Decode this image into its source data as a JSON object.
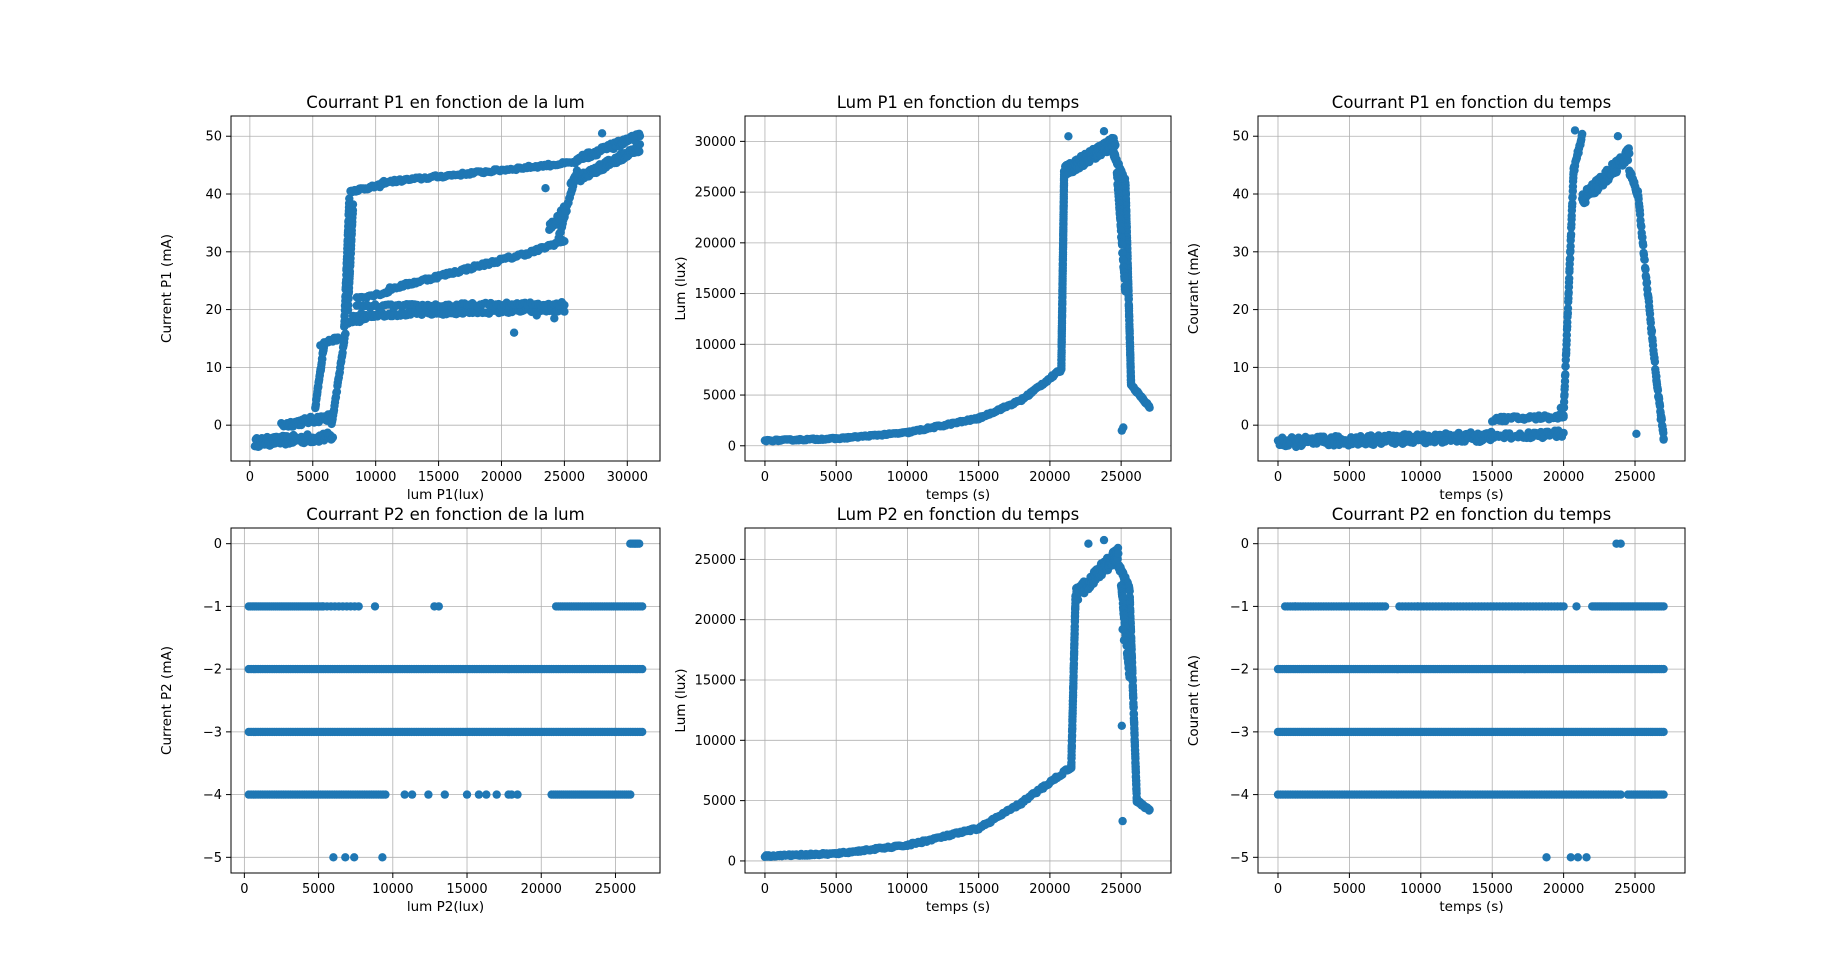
{
  "figure": {
    "background": "#ffffff",
    "point_color": "#1f77b4"
  },
  "chart_data": [
    {
      "id": "ax1",
      "type": "scatter",
      "title": "Courrant P1 en fonction de la lum",
      "xlabel": "lum P1(lux)",
      "ylabel": "Current P1 (mA)",
      "xlim": [
        -1500,
        32600
      ],
      "ylim": [
        -6.2,
        53.5
      ],
      "xticks": [
        0,
        5000,
        10000,
        15000,
        20000,
        25000,
        30000
      ],
      "yticks": [
        0,
        10,
        20,
        30,
        40,
        50
      ],
      "grid": true,
      "segments": [
        {
          "x0": 400,
          "x1": 6600,
          "y0": -3,
          "y1": -2,
          "jit": 1.6,
          "n": 90
        },
        {
          "x0": 2500,
          "x1": 6600,
          "y0": 0,
          "y1": 1.5,
          "jit": 1.2,
          "n": 45
        },
        {
          "x0": 5200,
          "x1": 5900,
          "y0": 3,
          "y1": 14,
          "jit": 0.7,
          "n": 30
        },
        {
          "x0": 5600,
          "x1": 7000,
          "y0": 14,
          "y1": 15,
          "jit": 0.6,
          "n": 15
        },
        {
          "x0": 6500,
          "x1": 7600,
          "y0": 0,
          "y1": 16,
          "jit": 0.6,
          "n": 30
        },
        {
          "x0": 7500,
          "x1": 7900,
          "y0": 17,
          "y1": 39,
          "jit": 0.6,
          "n": 40
        },
        {
          "x0": 7800,
          "x1": 8200,
          "y0": 20,
          "y1": 38,
          "jit": 0.6,
          "n": 35
        },
        {
          "x0": 8000,
          "x1": 10500,
          "y0": 40.5,
          "y1": 41.5,
          "jit": 0.5,
          "n": 30
        },
        {
          "x0": 10500,
          "x1": 26000,
          "y0": 42,
          "y1": 45.5,
          "jit": 0.5,
          "n": 110
        },
        {
          "x0": 7800,
          "x1": 10000,
          "y0": 17.5,
          "y1": 19,
          "jit": 0.6,
          "n": 20
        },
        {
          "x0": 8200,
          "x1": 25000,
          "y0": 19,
          "y1": 20,
          "jit": 0.7,
          "n": 130
        },
        {
          "x0": 8500,
          "x1": 25000,
          "y0": 20.5,
          "y1": 21,
          "jit": 0.7,
          "n": 80
        },
        {
          "x0": 8500,
          "x1": 11000,
          "y0": 22,
          "y1": 23,
          "jit": 0.5,
          "n": 20
        },
        {
          "x0": 11000,
          "x1": 22500,
          "y0": 23.5,
          "y1": 30,
          "jit": 0.6,
          "n": 90
        },
        {
          "x0": 22500,
          "x1": 25000,
          "y0": 30,
          "y1": 32,
          "jit": 0.6,
          "n": 25
        },
        {
          "x0": 24500,
          "x1": 26000,
          "y0": 32,
          "y1": 44,
          "jit": 0.7,
          "n": 30
        },
        {
          "x0": 23800,
          "x1": 25200,
          "y0": 34,
          "y1": 38,
          "jit": 1.3,
          "n": 25
        },
        {
          "x0": 25500,
          "x1": 31000,
          "y0": 42,
          "y1": 48,
          "jit": 1.3,
          "n": 120
        },
        {
          "x0": 26000,
          "x1": 31000,
          "y0": 46,
          "y1": 50,
          "jit": 1.1,
          "n": 90
        }
      ],
      "points": [
        [
          23500,
          41
        ],
        [
          22800,
          19
        ],
        [
          24200,
          18.5
        ],
        [
          21000,
          16
        ],
        [
          26000,
          46
        ],
        [
          28000,
          50.5
        ],
        [
          30500,
          50
        ]
      ]
    },
    {
      "id": "ax2",
      "type": "scatter",
      "title": "Lum P1 en fonction du temps",
      "xlabel": "temps (s)",
      "ylabel": "Lum (lux)",
      "xlim": [
        -1400,
        28500
      ],
      "ylim": [
        -1500,
        32500
      ],
      "xticks": [
        0,
        5000,
        10000,
        15000,
        20000,
        25000
      ],
      "yticks": [
        0,
        5000,
        10000,
        15000,
        20000,
        25000,
        30000
      ],
      "grid": true,
      "segments": [
        {
          "x0": 0,
          "x1": 5000,
          "y0": 500,
          "y1": 700,
          "jit": 150,
          "n": 60
        },
        {
          "x0": 5000,
          "x1": 10000,
          "y0": 700,
          "y1": 1300,
          "jit": 150,
          "n": 60
        },
        {
          "x0": 10000,
          "x1": 15000,
          "y0": 1300,
          "y1": 2700,
          "jit": 200,
          "n": 60
        },
        {
          "x0": 15000,
          "x1": 18000,
          "y0": 2700,
          "y1": 4500,
          "jit": 200,
          "n": 40
        },
        {
          "x0": 18000,
          "x1": 20800,
          "y0": 4500,
          "y1": 7500,
          "jit": 250,
          "n": 40
        },
        {
          "x0": 20800,
          "x1": 21000,
          "y0": 7500,
          "y1": 27000,
          "jit": 150,
          "n": 90
        },
        {
          "x0": 21000,
          "x1": 24600,
          "y0": 27000,
          "y1": 30000,
          "jit": 1100,
          "n": 150
        },
        {
          "x0": 24400,
          "x1": 25300,
          "y0": 29000,
          "y1": 26000,
          "jit": 600,
          "n": 30
        },
        {
          "x0": 25300,
          "x1": 25700,
          "y0": 26000,
          "y1": 6000,
          "jit": 300,
          "n": 100
        },
        {
          "x0": 24700,
          "x1": 25300,
          "y0": 27000,
          "y1": 15000,
          "jit": 600,
          "n": 40
        },
        {
          "x0": 25700,
          "x1": 27000,
          "y0": 6000,
          "y1": 3800,
          "jit": 200,
          "n": 30
        }
      ],
      "points": [
        [
          25050,
          1500
        ],
        [
          25150,
          1800
        ],
        [
          21300,
          30500
        ],
        [
          23800,
          31000
        ]
      ]
    },
    {
      "id": "ax3",
      "type": "scatter",
      "title": "Courrant P1 en fonction du temps",
      "xlabel": "temps (s)",
      "ylabel": "Courant (mA)",
      "xlim": [
        -1400,
        28500
      ],
      "ylim": [
        -6.2,
        53.5
      ],
      "xticks": [
        0,
        5000,
        10000,
        15000,
        20000,
        25000
      ],
      "yticks": [
        0,
        10,
        20,
        30,
        40,
        50
      ],
      "grid": true,
      "segments": [
        {
          "x0": 0,
          "x1": 15000,
          "y0": -3,
          "y1": -2,
          "jit": 1.7,
          "n": 250
        },
        {
          "x0": 14000,
          "x1": 20000,
          "y0": -2,
          "y1": -1.5,
          "jit": 1.2,
          "n": 50
        },
        {
          "x0": 15000,
          "x1": 20000,
          "y0": 1,
          "y1": 1.5,
          "jit": 0.8,
          "n": 50
        },
        {
          "x0": 20000,
          "x1": 20700,
          "y0": 2,
          "y1": 44,
          "jit": 0.8,
          "n": 60
        },
        {
          "x0": 20700,
          "x1": 21300,
          "y0": 44,
          "y1": 50,
          "jit": 1.2,
          "n": 20
        },
        {
          "x0": 21300,
          "x1": 24600,
          "y0": 39,
          "y1": 47,
          "jit": 2.2,
          "n": 100
        },
        {
          "x0": 24600,
          "x1": 25200,
          "y0": 44,
          "y1": 40,
          "jit": 1.0,
          "n": 20
        },
        {
          "x0": 25200,
          "x1": 26500,
          "y0": 40,
          "y1": 8,
          "jit": 1.0,
          "n": 50
        },
        {
          "x0": 26500,
          "x1": 27000,
          "y0": 8,
          "y1": -2,
          "jit": 1.0,
          "n": 25
        }
      ],
      "points": [
        [
          20800,
          51
        ],
        [
          23800,
          50
        ],
        [
          19800,
          3
        ],
        [
          25100,
          -1.5
        ],
        [
          26800,
          1
        ],
        [
          27000,
          -2.5
        ]
      ]
    },
    {
      "id": "ax4",
      "type": "scatter",
      "title": "Courrant P2 en fonction de la lum",
      "xlabel": "lum P2(lux)",
      "ylabel": "Current P2 (mA)",
      "xlim": [
        -900,
        28000
      ],
      "ylim": [
        -5.25,
        0.25
      ],
      "xticks": [
        0,
        5000,
        10000,
        15000,
        20000,
        25000
      ],
      "yticks": [
        0,
        -1,
        -2,
        -3,
        -4,
        -5
      ],
      "grid": true,
      "segments": [
        {
          "x0": 300,
          "x1": 26800,
          "y0": -2,
          "y1": -2,
          "jit": 0,
          "n": 170
        },
        {
          "x0": 300,
          "x1": 26800,
          "y0": -3,
          "y1": -3,
          "jit": 0,
          "n": 170
        },
        {
          "x0": 300,
          "x1": 5300,
          "y0": -1,
          "y1": -1,
          "jit": 0,
          "n": 40
        },
        {
          "x0": 5300,
          "x1": 7700,
          "y0": -1,
          "y1": -1,
          "jit": 0,
          "n": 10
        },
        {
          "x0": 21000,
          "x1": 26800,
          "y0": -1,
          "y1": -1,
          "jit": 0,
          "n": 40
        },
        {
          "x0": 300,
          "x1": 9500,
          "y0": -4,
          "y1": -4,
          "jit": 0,
          "n": 60
        },
        {
          "x0": 20700,
          "x1": 26000,
          "y0": -4,
          "y1": -4,
          "jit": 0,
          "n": 40
        },
        {
          "x0": 26000,
          "x1": 26600,
          "y0": 0,
          "y1": 0,
          "jit": 0,
          "n": 6
        }
      ],
      "points": [
        [
          8800,
          -1
        ],
        [
          12800,
          -1
        ],
        [
          13100,
          -1
        ],
        [
          10800,
          -4
        ],
        [
          11300,
          -4
        ],
        [
          12400,
          -4
        ],
        [
          13500,
          -4
        ],
        [
          15000,
          -4
        ],
        [
          15800,
          -4
        ],
        [
          16300,
          -4
        ],
        [
          17000,
          -4
        ],
        [
          17800,
          -4
        ],
        [
          18000,
          -4
        ],
        [
          18400,
          -4
        ],
        [
          6000,
          -5
        ],
        [
          6800,
          -5
        ],
        [
          7400,
          -5
        ],
        [
          9300,
          -5
        ]
      ]
    },
    {
      "id": "ax5",
      "type": "scatter",
      "title": "Lum P2 en fonction du temps",
      "xlabel": "temps (s)",
      "ylabel": "Lum (lux)",
      "xlim": [
        -1400,
        28500
      ],
      "ylim": [
        -1000,
        27600
      ],
      "xticks": [
        0,
        5000,
        10000,
        15000,
        20000,
        25000
      ],
      "yticks": [
        0,
        5000,
        10000,
        15000,
        20000,
        25000
      ],
      "grid": true,
      "segments": [
        {
          "x0": 0,
          "x1": 5000,
          "y0": 400,
          "y1": 600,
          "jit": 150,
          "n": 60
        },
        {
          "x0": 5000,
          "x1": 10000,
          "y0": 600,
          "y1": 1300,
          "jit": 150,
          "n": 60
        },
        {
          "x0": 10000,
          "x1": 15000,
          "y0": 1300,
          "y1": 2700,
          "jit": 200,
          "n": 60
        },
        {
          "x0": 15000,
          "x1": 18000,
          "y0": 2700,
          "y1": 4800,
          "jit": 200,
          "n": 40
        },
        {
          "x0": 18000,
          "x1": 21500,
          "y0": 4800,
          "y1": 7800,
          "jit": 250,
          "n": 40
        },
        {
          "x0": 21500,
          "x1": 21800,
          "y0": 7800,
          "y1": 22000,
          "jit": 200,
          "n": 70
        },
        {
          "x0": 21800,
          "x1": 24800,
          "y0": 22000,
          "y1": 25500,
          "jit": 1100,
          "n": 140
        },
        {
          "x0": 24800,
          "x1": 25600,
          "y0": 24500,
          "y1": 22500,
          "jit": 600,
          "n": 30
        },
        {
          "x0": 25600,
          "x1": 26100,
          "y0": 22000,
          "y1": 5000,
          "jit": 300,
          "n": 100
        },
        {
          "x0": 25000,
          "x1": 25600,
          "y0": 23000,
          "y1": 15000,
          "jit": 500,
          "n": 40
        },
        {
          "x0": 26100,
          "x1": 27000,
          "y0": 5000,
          "y1": 4200,
          "jit": 200,
          "n": 25
        }
      ],
      "points": [
        [
          25100,
          19200
        ],
        [
          25200,
          18300
        ],
        [
          25050,
          11200
        ],
        [
          25100,
          3300
        ],
        [
          23800,
          26600
        ],
        [
          22700,
          26300
        ]
      ]
    },
    {
      "id": "ax6",
      "type": "scatter",
      "title": "Courrant P2 en fonction du temps",
      "xlabel": "temps (s)",
      "ylabel": "Courant (mA)",
      "xlim": [
        -1400,
        28500
      ],
      "ylim": [
        -5.25,
        0.25
      ],
      "xticks": [
        0,
        5000,
        10000,
        15000,
        20000,
        25000
      ],
      "yticks": [
        0,
        -1,
        -2,
        -3,
        -4,
        -5
      ],
      "grid": true,
      "segments": [
        {
          "x0": 0,
          "x1": 27000,
          "y0": -2,
          "y1": -2,
          "jit": 0,
          "n": 180
        },
        {
          "x0": 0,
          "x1": 27000,
          "y0": -3,
          "y1": -3,
          "jit": 0,
          "n": 180
        },
        {
          "x0": 0,
          "x1": 24000,
          "y0": -4,
          "y1": -4,
          "jit": 0,
          "n": 140
        },
        {
          "x0": 24500,
          "x1": 27000,
          "y0": -4,
          "y1": -4,
          "jit": 0,
          "n": 20
        },
        {
          "x0": 500,
          "x1": 7500,
          "y0": -1,
          "y1": -1,
          "jit": 0,
          "n": 40
        },
        {
          "x0": 8500,
          "x1": 20000,
          "y0": -1,
          "y1": -1,
          "jit": 0,
          "n": 55
        },
        {
          "x0": 22000,
          "x1": 27000,
          "y0": -1,
          "y1": -1,
          "jit": 0,
          "n": 40
        }
      ],
      "points": [
        [
          20900,
          -1
        ],
        [
          23700,
          0
        ],
        [
          24000,
          0
        ],
        [
          18800,
          -5
        ],
        [
          20500,
          -5
        ],
        [
          21000,
          -5
        ],
        [
          21600,
          -5
        ],
        [
          1200,
          -1
        ],
        [
          9800,
          -1
        ]
      ]
    }
  ]
}
